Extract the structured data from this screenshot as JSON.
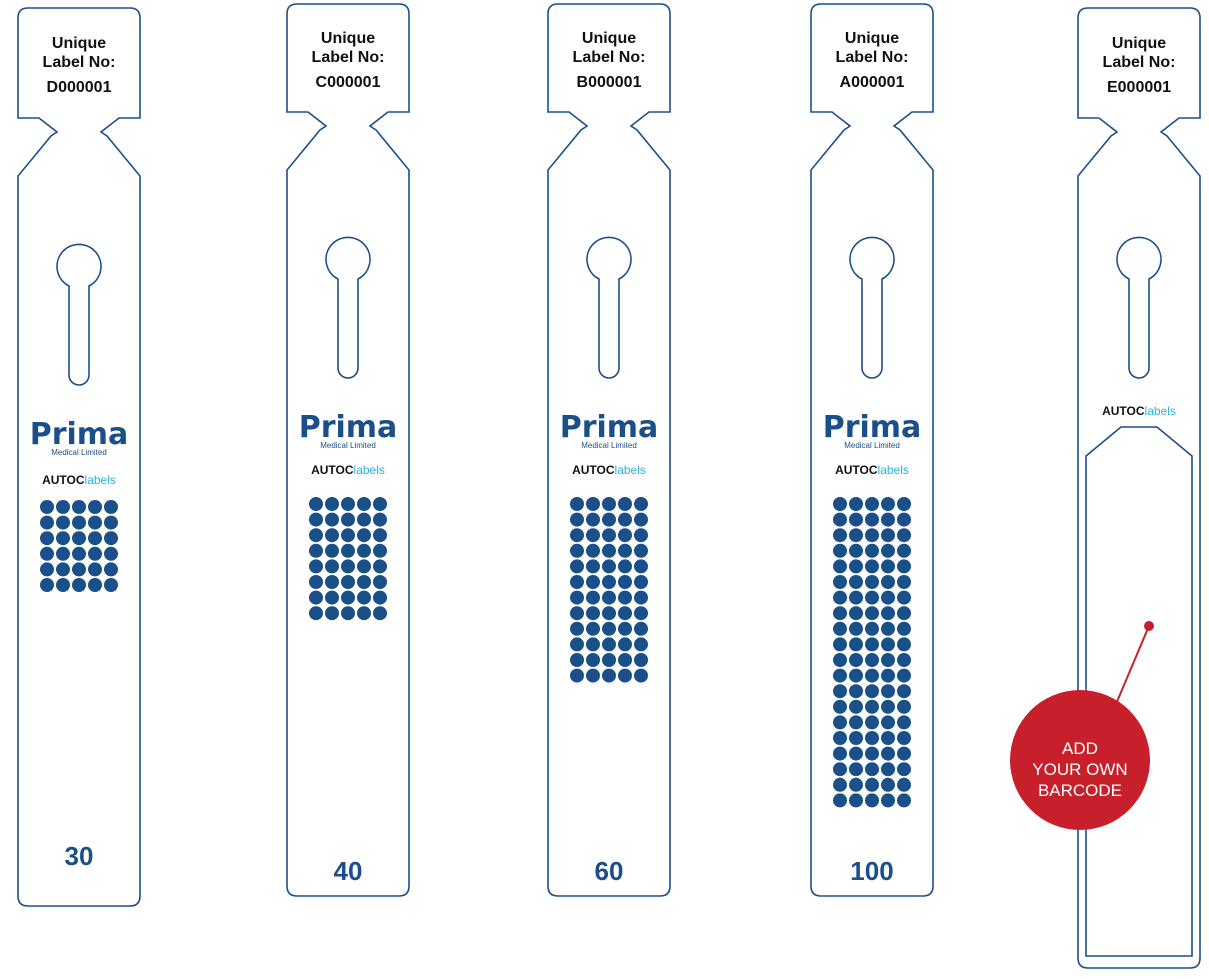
{
  "colors": {
    "outline": "#1b4f8a",
    "dots": "#1b4f8a",
    "callout": "#c8202a",
    "labels_accent": "#2bb3d8"
  },
  "tags": [
    {
      "label_line1": "Unique",
      "label_line2": "Label No:",
      "code": "D000001",
      "count": "30",
      "dot_rows": 6,
      "brand_name": "Prima",
      "brand_sub": "Medical Limited",
      "autoc_a": "AUTOC",
      "autoc_b": "labels"
    },
    {
      "label_line1": "Unique",
      "label_line2": "Label No:",
      "code": "C000001",
      "count": "40",
      "dot_rows": 8,
      "brand_name": "Prima",
      "brand_sub": "Medical Limited",
      "autoc_a": "AUTOC",
      "autoc_b": "labels"
    },
    {
      "label_line1": "Unique",
      "label_line2": "Label No:",
      "code": "B000001",
      "count": "60",
      "dot_rows": 12,
      "brand_name": "Prima",
      "brand_sub": "Medical Limited",
      "autoc_a": "AUTOC",
      "autoc_b": "labels"
    },
    {
      "label_line1": "Unique",
      "label_line2": "Label No:",
      "code": "A000001",
      "count": "100",
      "dot_rows": 20,
      "brand_name": "Prima",
      "brand_sub": "Medical Limited",
      "autoc_a": "AUTOC",
      "autoc_b": "labels"
    },
    {
      "label_line1": "Unique",
      "label_line2": "Label No:",
      "code": "E000001",
      "autoc_a": "AUTOC",
      "autoc_b": "labels"
    }
  ],
  "callout": {
    "line1": "ADD",
    "line2": "YOUR OWN",
    "line3": "BARCODE"
  }
}
